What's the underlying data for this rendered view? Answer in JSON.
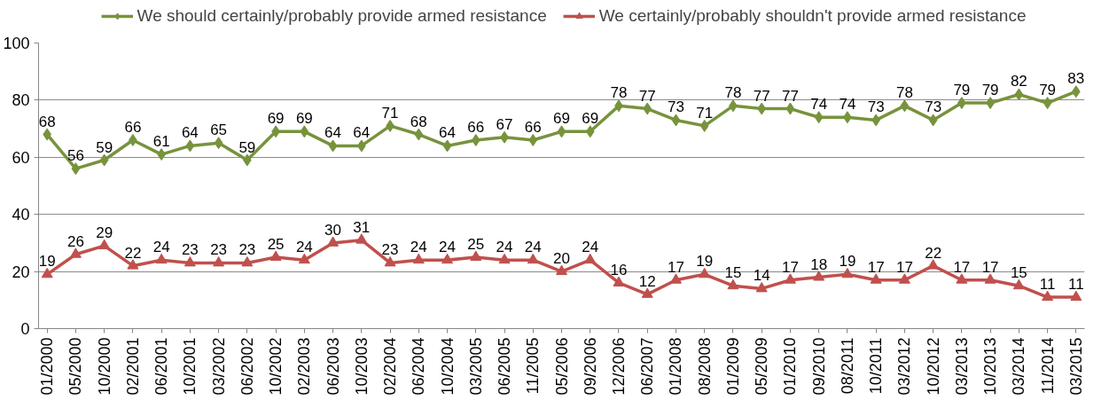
{
  "chart_data": {
    "type": "line",
    "categories": [
      "01/2000",
      "05/2000",
      "10/2000",
      "02/2001",
      "06/2001",
      "10/2001",
      "03/2002",
      "06/2002",
      "10/2002",
      "02/2003",
      "06/2003",
      "10/2003",
      "02/2004",
      "06/2004",
      "10/2004",
      "03/2005",
      "06/2005",
      "11/2005",
      "05/2006",
      "09/2006",
      "12/2006",
      "06/2007",
      "01/2008",
      "08/2008",
      "01/2009",
      "05/2009",
      "01/2010",
      "09/2010",
      "08/2011",
      "10/2011",
      "03/2012",
      "10/2012",
      "03/2013",
      "10/2013",
      "03/2014",
      "11/2014",
      "03/2015"
    ],
    "series": [
      {
        "name": "We should certainly/probably provide armed resistance",
        "color": "#77933c",
        "marker": "diamond",
        "values": [
          68,
          56,
          59,
          66,
          61,
          64,
          65,
          59,
          69,
          69,
          64,
          64,
          71,
          68,
          64,
          66,
          67,
          66,
          69,
          69,
          78,
          77,
          73,
          71,
          78,
          77,
          77,
          74,
          74,
          73,
          78,
          73,
          79,
          79,
          82,
          79,
          83
        ]
      },
      {
        "name": "We certainly/probably shouldn't provide armed resistance",
        "color": "#c0504d",
        "marker": "triangle",
        "values": [
          19,
          26,
          29,
          22,
          24,
          23,
          23,
          23,
          25,
          24,
          30,
          31,
          23,
          24,
          24,
          25,
          24,
          24,
          20,
          24,
          16,
          12,
          17,
          19,
          15,
          14,
          17,
          18,
          19,
          17,
          17,
          22,
          17,
          17,
          15,
          11,
          11
        ]
      }
    ],
    "ylim": [
      0,
      100
    ],
    "yticks": [
      0,
      20,
      40,
      60,
      80,
      100
    ],
    "grid": "y",
    "legend": "top",
    "data_labels": true,
    "line_style": "solid"
  }
}
